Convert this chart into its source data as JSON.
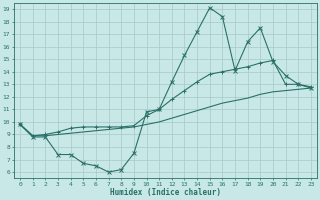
{
  "title": "",
  "xlabel": "Humidex (Indice chaleur)",
  "bg_color": "#c8e8e8",
  "grid_color": "#a8c8c8",
  "line_color": "#2a7068",
  "xlim": [
    -0.5,
    23.5
  ],
  "ylim": [
    5.5,
    19.5
  ],
  "xticks": [
    0,
    1,
    2,
    3,
    4,
    5,
    6,
    7,
    8,
    9,
    10,
    11,
    12,
    13,
    14,
    15,
    16,
    17,
    18,
    19,
    20,
    21,
    22,
    23
  ],
  "yticks": [
    6,
    7,
    8,
    9,
    10,
    11,
    12,
    13,
    14,
    15,
    16,
    17,
    18,
    19
  ],
  "line1_x": [
    0,
    1,
    2,
    3,
    4,
    5,
    6,
    7,
    8,
    9,
    10,
    11,
    12,
    13,
    14,
    15,
    16,
    17,
    18,
    19,
    20,
    21,
    22,
    23
  ],
  "line1_y": [
    9.8,
    8.8,
    8.8,
    7.4,
    7.4,
    6.7,
    6.5,
    6.0,
    6.2,
    7.5,
    10.8,
    11.0,
    13.2,
    15.3,
    17.2,
    19.1,
    18.4,
    14.1,
    16.4,
    17.5,
    14.8,
    13.7,
    13.0,
    12.7
  ],
  "line2_x": [
    0,
    1,
    2,
    3,
    4,
    5,
    6,
    7,
    8,
    9,
    10,
    11,
    12,
    13,
    14,
    15,
    16,
    17,
    18,
    19,
    20,
    21,
    22,
    23
  ],
  "line2_y": [
    9.8,
    8.9,
    9.0,
    9.2,
    9.5,
    9.6,
    9.6,
    9.6,
    9.6,
    9.7,
    10.5,
    11.0,
    11.8,
    12.5,
    13.2,
    13.8,
    14.0,
    14.2,
    14.4,
    14.7,
    14.9,
    13.0,
    13.0,
    12.8
  ],
  "line3_x": [
    0,
    1,
    2,
    3,
    4,
    5,
    6,
    7,
    8,
    9,
    10,
    11,
    12,
    13,
    14,
    15,
    16,
    17,
    18,
    19,
    20,
    21,
    22,
    23
  ],
  "line3_y": [
    9.8,
    8.9,
    8.9,
    9.0,
    9.1,
    9.2,
    9.3,
    9.4,
    9.5,
    9.6,
    9.8,
    10.0,
    10.3,
    10.6,
    10.9,
    11.2,
    11.5,
    11.7,
    11.9,
    12.2,
    12.4,
    12.5,
    12.6,
    12.7
  ],
  "tick_fontsize": 4.5,
  "xlabel_fontsize": 5.5
}
